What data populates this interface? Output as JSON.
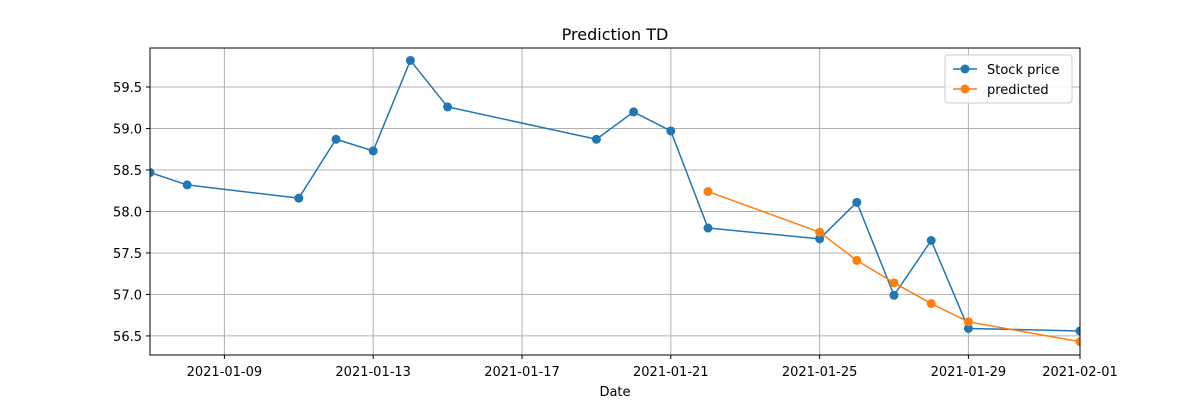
{
  "chart_data": {
    "type": "line",
    "title": "Prediction TD",
    "xlabel": "Date",
    "ylabel": "",
    "xlim": [
      "2021-01-07",
      "2021-02-01"
    ],
    "ylim": [
      56.27,
      59.97
    ],
    "x_ticks": [
      "2021-01-09",
      "2021-01-13",
      "2021-01-17",
      "2021-01-21",
      "2021-01-25",
      "2021-01-29",
      "2021-02-01"
    ],
    "y_ticks": [
      "56.5",
      "57.0",
      "57.5",
      "58.0",
      "58.5",
      "59.0",
      "59.5"
    ],
    "grid": true,
    "legend_position": "top-right",
    "series": [
      {
        "name": "Stock price",
        "color": "#1f77b4",
        "marker": "circle",
        "x": [
          "2021-01-07",
          "2021-01-08",
          "2021-01-11",
          "2021-01-12",
          "2021-01-13",
          "2021-01-14",
          "2021-01-15",
          "2021-01-19",
          "2021-01-20",
          "2021-01-21",
          "2021-01-22",
          "2021-01-25",
          "2021-01-26",
          "2021-01-27",
          "2021-01-28",
          "2021-01-29",
          "2021-02-01"
        ],
        "values": [
          58.47,
          58.32,
          58.16,
          58.87,
          58.73,
          59.82,
          59.26,
          58.87,
          59.2,
          58.97,
          57.8,
          57.67,
          58.11,
          56.99,
          57.65,
          56.59,
          56.56
        ]
      },
      {
        "name": "predicted",
        "color": "#ff7f0e",
        "marker": "circle",
        "x": [
          "2021-01-22",
          "2021-01-25",
          "2021-01-26",
          "2021-01-27",
          "2021-01-28",
          "2021-01-29",
          "2021-02-01"
        ],
        "values": [
          58.24,
          57.75,
          57.41,
          57.14,
          56.89,
          56.67,
          56.43
        ]
      }
    ]
  }
}
